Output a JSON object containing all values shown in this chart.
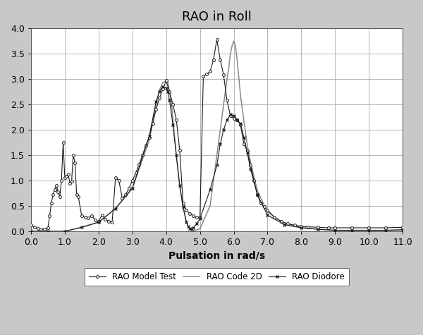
{
  "title": "RAO in Roll",
  "xlabel": "Pulsation in rad/s",
  "xlim": [
    0.0,
    11.0
  ],
  "ylim": [
    0.0,
    4.0
  ],
  "xticks": [
    0.0,
    1.0,
    2.0,
    3.0,
    4.0,
    5.0,
    6.0,
    7.0,
    8.0,
    9.0,
    10.0,
    11.0
  ],
  "yticks": [
    0.0,
    0.5,
    1.0,
    1.5,
    2.0,
    2.5,
    3.0,
    3.5,
    4.0
  ],
  "fig_bg": "#c8c8c8",
  "plot_bg": "#ffffff",
  "legend_labels": [
    "RAO Model Test",
    "RAO Code 2D",
    "RAO Diodore"
  ],
  "model_test": {
    "x": [
      0.0,
      0.1,
      0.2,
      0.3,
      0.4,
      0.5,
      0.55,
      0.6,
      0.65,
      0.7,
      0.75,
      0.8,
      0.85,
      0.9,
      0.95,
      1.0,
      1.05,
      1.1,
      1.15,
      1.2,
      1.25,
      1.3,
      1.35,
      1.4,
      1.5,
      1.6,
      1.7,
      1.8,
      1.9,
      2.0,
      2.1,
      2.2,
      2.3,
      2.4,
      2.5,
      2.6,
      2.7,
      2.8,
      2.9,
      3.0,
      3.1,
      3.2,
      3.3,
      3.4,
      3.5,
      3.6,
      3.7,
      3.8,
      3.9,
      4.0,
      4.1,
      4.2,
      4.3,
      4.4,
      4.5,
      4.6,
      4.7,
      4.8,
      4.9,
      5.0,
      5.1,
      5.2,
      5.3,
      5.4,
      5.5,
      5.6,
      5.7,
      5.8,
      5.9,
      6.0,
      6.1,
      6.2,
      6.3,
      6.4,
      6.5,
      6.6,
      6.7,
      6.8,
      6.9,
      7.0,
      7.2,
      7.4,
      7.6,
      7.8,
      8.0,
      8.2,
      8.5,
      8.8,
      9.0,
      9.5,
      10.0,
      10.5,
      11.0
    ],
    "y": [
      0.12,
      0.08,
      0.05,
      0.04,
      0.04,
      0.07,
      0.3,
      0.55,
      0.72,
      0.82,
      0.9,
      0.78,
      0.68,
      1.0,
      1.75,
      1.05,
      1.08,
      1.12,
      0.95,
      0.98,
      1.5,
      1.35,
      0.72,
      0.68,
      0.3,
      0.28,
      0.26,
      0.3,
      0.22,
      0.2,
      0.32,
      0.24,
      0.2,
      0.18,
      1.05,
      1.0,
      0.65,
      0.72,
      0.85,
      1.0,
      1.15,
      1.32,
      1.5,
      1.7,
      1.85,
      2.12,
      2.4,
      2.62,
      2.8,
      2.97,
      2.75,
      2.5,
      2.2,
      1.6,
      0.55,
      0.42,
      0.35,
      0.3,
      0.28,
      0.28,
      3.05,
      3.1,
      3.15,
      3.38,
      3.78,
      3.38,
      3.08,
      2.58,
      2.28,
      2.22,
      2.2,
      2.1,
      1.72,
      1.58,
      1.3,
      1.0,
      0.72,
      0.55,
      0.48,
      0.42,
      0.28,
      0.2,
      0.15,
      0.12,
      0.1,
      0.09,
      0.08,
      0.07,
      0.07,
      0.07,
      0.07,
      0.07,
      0.08
    ]
  },
  "code_2d": {
    "x": [
      0.0,
      0.5,
      1.0,
      1.5,
      2.0,
      2.5,
      3.0,
      3.5,
      3.7,
      3.8,
      3.9,
      4.0,
      4.05,
      4.1,
      4.15,
      4.2,
      4.3,
      4.4,
      4.5,
      4.6,
      4.65,
      4.7,
      4.75,
      4.8,
      4.85,
      4.9,
      5.0,
      5.3,
      5.5,
      5.6,
      5.7,
      5.8,
      5.85,
      5.9,
      5.95,
      6.0,
      6.05,
      6.1,
      6.2,
      6.3,
      6.4,
      6.5,
      6.7,
      7.0,
      7.5,
      8.0,
      8.5,
      9.0,
      9.5,
      10.0,
      10.5,
      11.0
    ],
    "y": [
      0.0,
      0.0,
      0.0,
      0.08,
      0.18,
      0.45,
      0.85,
      1.8,
      2.5,
      2.78,
      2.93,
      2.97,
      2.93,
      2.75,
      2.55,
      2.2,
      1.5,
      0.9,
      0.48,
      0.18,
      0.1,
      0.06,
      0.03,
      0.02,
      0.02,
      0.03,
      0.05,
      0.5,
      1.5,
      2.0,
      2.5,
      3.0,
      3.2,
      3.5,
      3.65,
      3.75,
      3.65,
      3.38,
      2.68,
      2.18,
      1.7,
      1.35,
      0.8,
      0.38,
      0.15,
      0.08,
      0.04,
      0.02,
      0.02,
      0.02,
      0.02,
      0.03
    ]
  },
  "diodore": {
    "x": [
      0.0,
      0.5,
      1.0,
      1.5,
      2.0,
      2.5,
      3.0,
      3.5,
      3.7,
      3.8,
      3.9,
      4.0,
      4.05,
      4.1,
      4.2,
      4.3,
      4.4,
      4.5,
      4.6,
      4.65,
      4.7,
      4.75,
      4.8,
      4.9,
      5.0,
      5.3,
      5.5,
      5.6,
      5.7,
      5.8,
      5.9,
      6.0,
      6.1,
      6.2,
      6.3,
      6.4,
      6.5,
      6.7,
      7.0,
      7.5,
      8.0,
      8.5,
      9.0,
      9.5,
      10.0,
      10.5,
      11.0
    ],
    "y": [
      0.0,
      0.0,
      0.0,
      0.08,
      0.18,
      0.45,
      0.85,
      1.88,
      2.55,
      2.75,
      2.85,
      2.82,
      2.75,
      2.58,
      2.1,
      1.5,
      0.9,
      0.48,
      0.18,
      0.1,
      0.06,
      0.04,
      0.07,
      0.15,
      0.25,
      0.82,
      1.3,
      1.72,
      2.0,
      2.2,
      2.3,
      2.28,
      2.2,
      2.12,
      1.85,
      1.55,
      1.22,
      0.72,
      0.32,
      0.13,
      0.07,
      0.04,
      0.02,
      0.02,
      0.02,
      0.02,
      0.03
    ]
  }
}
